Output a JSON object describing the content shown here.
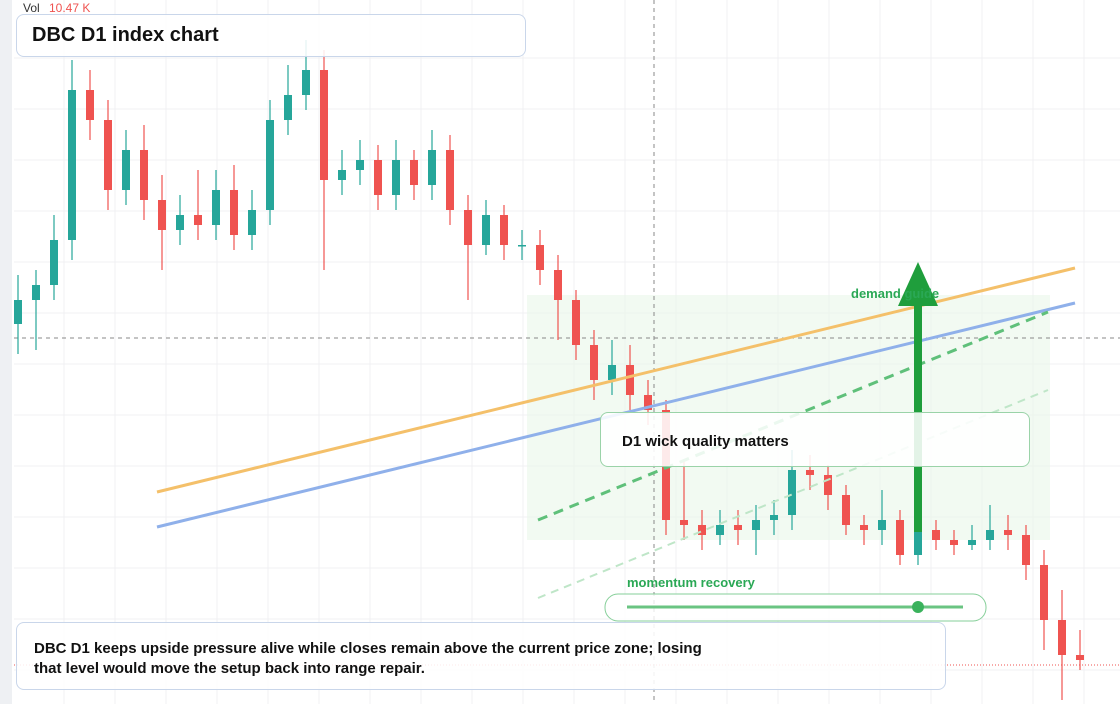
{
  "vol_label": "Vol",
  "vol_value": "10.47 K",
  "title": "DBC D1 index chart",
  "annotations": {
    "demand": "demand guide",
    "wick": "D1 wick quality matters",
    "momentum": "momentum recovery"
  },
  "description": "DBC D1 keeps upside pressure alive while closes remain above the current price zone; losing that level would move the setup back into range repair.",
  "chart_data": {
    "type": "candlestick",
    "ylim": [
      0,
      70.4
    ],
    "up_color": "#26a69a",
    "down_color": "#ef5350",
    "open": [
      38.0,
      40.4,
      41.9,
      46.4,
      61.4,
      58.4,
      51.4,
      55.4,
      50.4,
      47.4,
      48.9,
      47.9,
      51.4,
      46.9,
      49.4,
      58.4,
      60.9,
      63.4,
      52.4,
      53.4,
      54.4,
      50.9,
      54.4,
      51.9,
      55.4,
      49.4,
      45.9,
      48.9,
      45.9,
      45.9,
      43.4,
      40.4,
      35.9,
      32.4,
      33.9,
      30.9,
      29.4,
      18.4,
      17.9,
      16.9,
      17.9,
      17.4,
      18.4,
      18.9,
      23.4,
      22.9,
      20.9,
      17.9,
      17.4,
      18.4,
      14.9,
      17.4,
      16.4,
      15.9,
      16.4,
      17.4,
      16.9,
      13.9,
      8.4,
      4.9
    ],
    "high": [
      42.9,
      43.4,
      48.9,
      64.4,
      63.4,
      60.4,
      57.4,
      57.9,
      52.9,
      50.9,
      53.4,
      53.4,
      53.9,
      51.4,
      60.4,
      63.9,
      66.4,
      65.4,
      55.4,
      56.4,
      55.9,
      56.4,
      55.4,
      57.4,
      56.9,
      50.9,
      50.4,
      49.9,
      47.4,
      47.4,
      44.9,
      41.4,
      37.4,
      36.4,
      35.9,
      32.4,
      30.4,
      24.4,
      19.4,
      19.4,
      19.4,
      19.9,
      20.4,
      25.4,
      24.9,
      23.9,
      21.9,
      18.9,
      21.4,
      19.4,
      19.4,
      18.4,
      17.4,
      17.9,
      19.9,
      18.9,
      17.9,
      15.4,
      11.4,
      7.4
    ],
    "low": [
      35.0,
      35.4,
      40.4,
      44.4,
      56.4,
      49.4,
      49.9,
      48.4,
      43.4,
      45.9,
      46.4,
      46.4,
      45.4,
      45.4,
      47.9,
      56.9,
      59.4,
      43.4,
      50.9,
      51.9,
      49.4,
      49.4,
      50.4,
      50.4,
      47.9,
      40.4,
      44.9,
      44.4,
      44.4,
      41.9,
      36.4,
      34.4,
      30.4,
      30.9,
      29.4,
      27.9,
      16.9,
      16.4,
      15.4,
      15.9,
      15.9,
      14.9,
      16.9,
      17.4,
      21.4,
      19.4,
      16.9,
      15.9,
      15.9,
      13.9,
      13.9,
      15.4,
      14.9,
      15.4,
      15.4,
      15.4,
      12.4,
      5.4,
      0.4,
      3.4
    ],
    "close": [
      40.4,
      41.9,
      46.4,
      61.4,
      58.4,
      51.4,
      55.4,
      50.4,
      47.4,
      48.9,
      47.9,
      51.4,
      46.9,
      49.4,
      58.4,
      60.9,
      63.4,
      52.4,
      53.4,
      54.4,
      50.9,
      54.4,
      51.9,
      55.4,
      49.4,
      45.9,
      48.9,
      45.9,
      45.9,
      43.4,
      40.4,
      35.9,
      32.4,
      33.9,
      30.9,
      29.4,
      18.4,
      17.9,
      16.9,
      17.9,
      17.4,
      18.4,
      18.9,
      23.4,
      22.9,
      20.9,
      17.9,
      17.4,
      18.4,
      14.9,
      17.4,
      16.4,
      15.9,
      16.4,
      17.4,
      16.9,
      13.9,
      8.4,
      4.9,
      4.4
    ]
  }
}
